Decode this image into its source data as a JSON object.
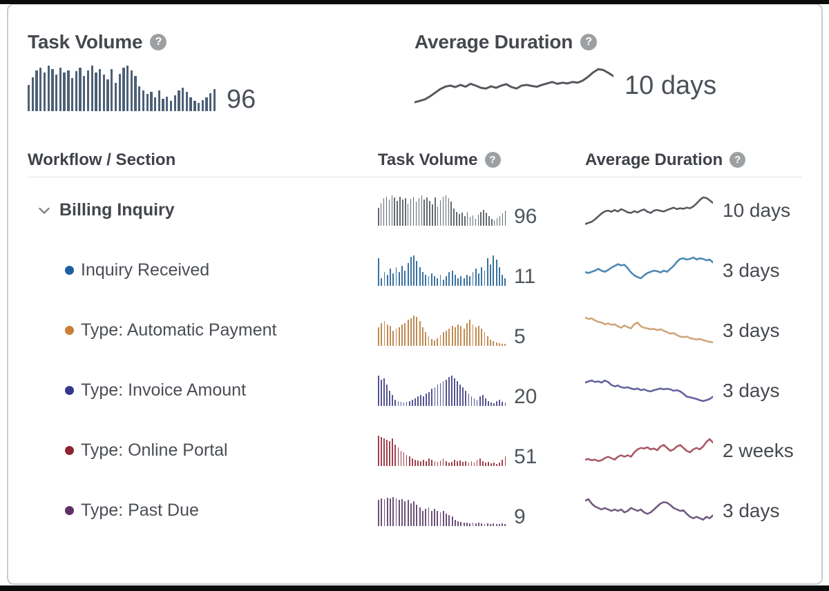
{
  "icons": {
    "help_glyph": "?",
    "chevron": "chevron-down"
  },
  "summary": {
    "task_volume": {
      "title": "Task Volume",
      "value": "96",
      "bar_color": "#4d6076",
      "bars": [
        0.58,
        0.75,
        0.9,
        0.95,
        0.85,
        1,
        0.92,
        0.8,
        0.95,
        0.85,
        0.9,
        0.72,
        0.88,
        0.95,
        0.78,
        0.9,
        1,
        0.85,
        0.92,
        0.8,
        0.7,
        0.92,
        0.62,
        0.82,
        0.95,
        1,
        0.9,
        0.78,
        0.55,
        0.45,
        0.38,
        0.42,
        0.3,
        0.45,
        0.28,
        0.32,
        0.22,
        0.35,
        0.45,
        0.52,
        0.42,
        0.3,
        0.22,
        0.18,
        0.25,
        0.3,
        0.4,
        0.48
      ]
    },
    "average_duration": {
      "title": "Average Duration",
      "value": "10 days",
      "line_color": "#55595e",
      "line": [
        0.04,
        0.08,
        0.12,
        0.2,
        0.3,
        0.4,
        0.47,
        0.5,
        0.46,
        0.52,
        0.47,
        0.55,
        0.5,
        0.44,
        0.42,
        0.48,
        0.44,
        0.5,
        0.54,
        0.46,
        0.42,
        0.5,
        0.52,
        0.49,
        0.47,
        0.52,
        0.56,
        0.6,
        0.55,
        0.58,
        0.56,
        0.6,
        0.58,
        0.64,
        0.74,
        0.86,
        0.95,
        0.93,
        0.85,
        0.76
      ]
    }
  },
  "table": {
    "headers": [
      {
        "label": "Workflow / Section",
        "help": false
      },
      {
        "label": "Task Volume",
        "help": true
      },
      {
        "label": "Average Duration",
        "help": true
      }
    ],
    "rows": [
      {
        "label": "Billing Inquiry",
        "kind": "group",
        "volume": "96",
        "duration": "10 days",
        "bar_color": "#61696f",
        "line_color": "#55595e",
        "bullet_color": null,
        "bars": [
          0.58,
          0.75,
          0.9,
          0.95,
          0.85,
          1,
          0.92,
          0.8,
          0.95,
          0.85,
          0.9,
          0.72,
          0.88,
          0.95,
          0.78,
          0.9,
          1,
          0.85,
          0.92,
          0.8,
          0.7,
          0.92,
          0.62,
          0.82,
          0.95,
          1,
          0.9,
          0.78,
          0.55,
          0.45,
          0.38,
          0.42,
          0.3,
          0.45,
          0.28,
          0.32,
          0.22,
          0.35,
          0.45,
          0.52,
          0.42,
          0.3,
          0.22,
          0.18,
          0.25,
          0.3,
          0.4,
          0.48
        ],
        "line": [
          0.04,
          0.08,
          0.12,
          0.2,
          0.3,
          0.4,
          0.47,
          0.5,
          0.46,
          0.52,
          0.47,
          0.55,
          0.5,
          0.44,
          0.42,
          0.48,
          0.44,
          0.5,
          0.54,
          0.46,
          0.42,
          0.5,
          0.52,
          0.49,
          0.47,
          0.52,
          0.56,
          0.6,
          0.55,
          0.58,
          0.56,
          0.6,
          0.58,
          0.64,
          0.74,
          0.86,
          0.95,
          0.93,
          0.85,
          0.76
        ]
      },
      {
        "label": "Inquiry Received",
        "kind": "step",
        "volume": "11",
        "duration": "3 days",
        "bar_color": "#38719e",
        "line_color": "#4b87b3",
        "bullet_color": "#1d5f9f",
        "bars": [
          0.9,
          0.25,
          0.45,
          0.35,
          0.55,
          0.4,
          0.6,
          0.45,
          0.65,
          0.5,
          0.75,
          0.95,
          1,
          0.8,
          0.6,
          0.45,
          0.35,
          0.3,
          0.4,
          0.3,
          0.25,
          0.35,
          0.2,
          0.3,
          0.45,
          0.5,
          0.35,
          0.25,
          0.3,
          0.25,
          0.35,
          0.3,
          0.45,
          0.55,
          0.4,
          0.6,
          0.5,
          0.9,
          0.7,
          1,
          0.85,
          0.6,
          0.35,
          0.25
        ],
        "line": [
          0.45,
          0.42,
          0.46,
          0.5,
          0.56,
          0.5,
          0.46,
          0.52,
          0.6,
          0.66,
          0.72,
          0.68,
          0.7,
          0.58,
          0.44,
          0.34,
          0.28,
          0.24,
          0.34,
          0.42,
          0.46,
          0.5,
          0.48,
          0.44,
          0.5,
          0.46,
          0.56,
          0.66,
          0.8,
          0.9,
          0.92,
          0.88,
          0.9,
          0.95,
          0.88,
          0.92,
          0.9,
          0.85,
          0.88,
          0.78
        ]
      },
      {
        "label": "Type: Automatic Payment",
        "kind": "step",
        "volume": "5",
        "duration": "3 days",
        "bar_color": "#c08a52",
        "line_color": "#cfa478",
        "bullet_color": "#c97e3a",
        "bars": [
          0.6,
          0.75,
          0.8,
          0.7,
          0.65,
          0.5,
          0.55,
          0.6,
          0.7,
          0.75,
          0.85,
          0.9,
          1,
          0.95,
          0.8,
          0.6,
          0.45,
          0.3,
          0.22,
          0.18,
          0.25,
          0.35,
          0.45,
          0.5,
          0.55,
          0.65,
          0.6,
          0.7,
          0.65,
          0.55,
          0.75,
          0.85,
          0.7,
          0.6,
          0.65,
          0.55,
          0.45,
          0.3,
          0.2,
          0.14,
          0.1,
          0.08,
          0.06,
          0.05
        ],
        "line": [
          0.95,
          0.9,
          0.92,
          0.85,
          0.8,
          0.78,
          0.72,
          0.75,
          0.7,
          0.72,
          0.65,
          0.6,
          0.68,
          0.62,
          0.58,
          0.72,
          0.78,
          0.65,
          0.6,
          0.58,
          0.55,
          0.56,
          0.52,
          0.55,
          0.5,
          0.45,
          0.4,
          0.42,
          0.35,
          0.3,
          0.28,
          0.3,
          0.25,
          0.22,
          0.2,
          0.22,
          0.18,
          0.15,
          0.12,
          0.1
        ]
      },
      {
        "label": "Type: Invoice Amount",
        "kind": "step",
        "volume": "20",
        "duration": "3 days",
        "bar_color": "#555391",
        "line_color": "#63629e",
        "bullet_color": "#37378f",
        "bars": [
          1,
          0.85,
          0.9,
          0.7,
          0.5,
          0.35,
          0.2,
          0.15,
          0.12,
          0.1,
          0.12,
          0.15,
          0.2,
          0.25,
          0.3,
          0.35,
          0.3,
          0.4,
          0.45,
          0.55,
          0.6,
          0.7,
          0.75,
          0.8,
          0.85,
          0.95,
          1,
          0.9,
          0.8,
          0.7,
          0.6,
          0.5,
          0.4,
          0.3,
          0.25,
          0.2,
          0.3,
          0.35,
          0.25,
          0.15,
          0.1,
          0.08,
          0.15,
          0.2,
          0.12,
          0.1
        ],
        "line": [
          0.78,
          0.82,
          0.85,
          0.8,
          0.82,
          0.78,
          0.85,
          0.8,
          0.7,
          0.65,
          0.68,
          0.62,
          0.6,
          0.62,
          0.58,
          0.55,
          0.58,
          0.52,
          0.55,
          0.5,
          0.48,
          0.52,
          0.55,
          0.58,
          0.55,
          0.57,
          0.55,
          0.5,
          0.52,
          0.48,
          0.4,
          0.3,
          0.28,
          0.25,
          0.22,
          0.18,
          0.15,
          0.18,
          0.22,
          0.3
        ]
      },
      {
        "label": "Type: Online Portal",
        "kind": "step",
        "volume": "51",
        "duration": "2 weeks",
        "bar_color": "#9d404b",
        "line_color": "#a85765",
        "bullet_color": "#8e2432",
        "bars": [
          1,
          0.95,
          0.9,
          0.85,
          0.8,
          0.9,
          0.7,
          0.6,
          0.5,
          0.45,
          0.35,
          0.3,
          0.25,
          0.2,
          0.18,
          0.15,
          0.2,
          0.15,
          0.25,
          0.2,
          0.15,
          0.12,
          0.18,
          0.25,
          0.15,
          0.1,
          0.12,
          0.2,
          0.15,
          0.18,
          0.12,
          0.15,
          0.1,
          0.14,
          0.1,
          0.2,
          0.25,
          0.15,
          0.1,
          0.12,
          0.08,
          0.1,
          0.06,
          0.1,
          0.2,
          0.3
        ],
        "line": [
          0.2,
          0.22,
          0.18,
          0.2,
          0.15,
          0.18,
          0.25,
          0.3,
          0.25,
          0.2,
          0.3,
          0.35,
          0.3,
          0.35,
          0.3,
          0.45,
          0.55,
          0.6,
          0.58,
          0.62,
          0.55,
          0.58,
          0.52,
          0.65,
          0.7,
          0.6,
          0.5,
          0.55,
          0.65,
          0.7,
          0.6,
          0.5,
          0.45,
          0.55,
          0.6,
          0.55,
          0.65,
          0.8,
          0.9,
          0.78
        ]
      },
      {
        "label": "Type: Past Due",
        "kind": "step",
        "volume": "9",
        "duration": "3 days",
        "bar_color": "#6c5078",
        "line_color": "#6f5a7e",
        "bullet_color": "#5c3167",
        "bars": [
          0.85,
          0.9,
          0.88,
          0.92,
          0.9,
          0.95,
          0.9,
          0.85,
          0.88,
          0.8,
          0.85,
          0.75,
          0.8,
          0.7,
          0.6,
          0.5,
          0.55,
          0.6,
          0.5,
          0.55,
          0.5,
          0.45,
          0.5,
          0.4,
          0.35,
          0.3,
          0.2,
          0.15,
          0.12,
          0.1,
          0.1,
          0.08,
          0.1,
          0.08,
          0.1,
          0.08,
          0.06,
          0.08,
          0.05,
          0.08,
          0.05,
          0.06,
          0.08,
          0.06
        ],
        "line": [
          0.85,
          0.9,
          0.75,
          0.65,
          0.6,
          0.55,
          0.6,
          0.55,
          0.5,
          0.55,
          0.5,
          0.55,
          0.45,
          0.5,
          0.6,
          0.55,
          0.5,
          0.55,
          0.45,
          0.4,
          0.45,
          0.55,
          0.65,
          0.75,
          0.8,
          0.78,
          0.7,
          0.6,
          0.55,
          0.5,
          0.52,
          0.4,
          0.3,
          0.25,
          0.3,
          0.25,
          0.2,
          0.3,
          0.25,
          0.35
        ]
      }
    ]
  }
}
